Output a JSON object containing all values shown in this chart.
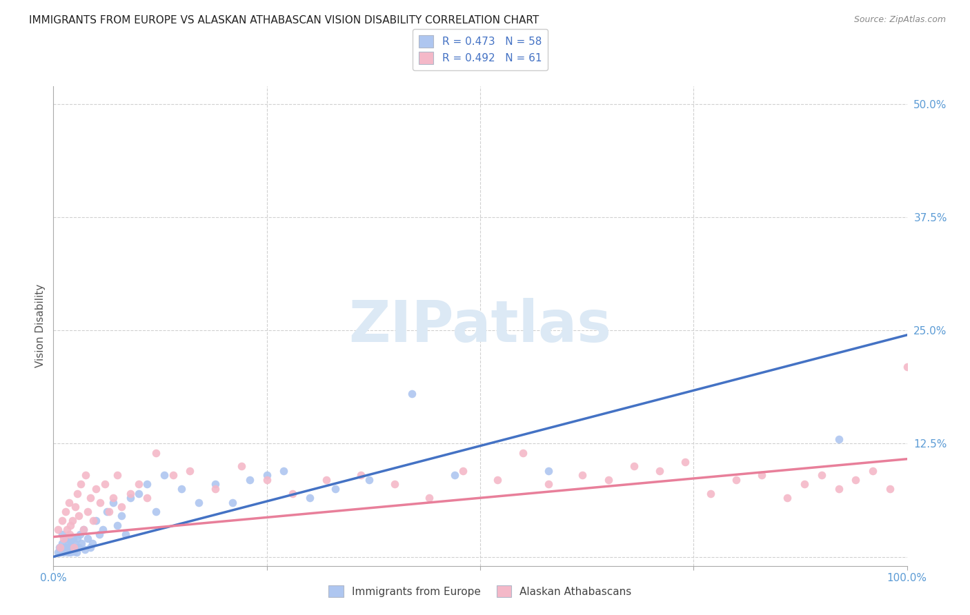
{
  "title": "IMMIGRANTS FROM EUROPE VS ALASKAN ATHABASCAN VISION DISABILITY CORRELATION CHART",
  "source": "Source: ZipAtlas.com",
  "ylabel": "Vision Disability",
  "yticks": [
    0.0,
    0.125,
    0.25,
    0.375,
    0.5
  ],
  "ytick_labels": [
    "",
    "12.5%",
    "25.0%",
    "37.5%",
    "50.0%"
  ],
  "xlim": [
    0.0,
    1.0
  ],
  "ylim": [
    -0.01,
    0.52
  ],
  "legend_entries": [
    {
      "label": "R = 0.473   N = 58",
      "facecolor": "#aec6f0"
    },
    {
      "label": "R = 0.492   N = 61",
      "facecolor": "#f4b8c8"
    }
  ],
  "legend_bottom": [
    "Immigrants from Europe",
    "Alaskan Athabascans"
  ],
  "legend_bottom_colors": [
    "#aec6f0",
    "#f4b8c8"
  ],
  "watermark": "ZIPatlas",
  "blue_line": {
    "x_start": 0.0,
    "y_start": 0.0,
    "x_end": 1.0,
    "y_end": 0.245
  },
  "pink_line": {
    "x_start": 0.0,
    "y_start": 0.022,
    "x_end": 1.0,
    "y_end": 0.108
  },
  "blue_scatter_x": [
    0.005,
    0.007,
    0.008,
    0.01,
    0.01,
    0.012,
    0.013,
    0.015,
    0.015,
    0.016,
    0.017,
    0.018,
    0.019,
    0.02,
    0.02,
    0.021,
    0.022,
    0.023,
    0.024,
    0.025,
    0.026,
    0.027,
    0.028,
    0.03,
    0.031,
    0.033,
    0.035,
    0.037,
    0.04,
    0.043,
    0.046,
    0.05,
    0.054,
    0.058,
    0.063,
    0.07,
    0.075,
    0.08,
    0.085,
    0.09,
    0.1,
    0.11,
    0.12,
    0.13,
    0.15,
    0.17,
    0.19,
    0.21,
    0.23,
    0.25,
    0.27,
    0.3,
    0.33,
    0.37,
    0.42,
    0.47,
    0.58,
    0.92
  ],
  "blue_scatter_y": [
    0.005,
    0.01,
    0.005,
    0.015,
    0.025,
    0.005,
    0.01,
    0.008,
    0.02,
    0.01,
    0.005,
    0.015,
    0.01,
    0.005,
    0.018,
    0.012,
    0.008,
    0.02,
    0.006,
    0.015,
    0.01,
    0.005,
    0.02,
    0.01,
    0.025,
    0.015,
    0.03,
    0.008,
    0.02,
    0.01,
    0.015,
    0.04,
    0.025,
    0.03,
    0.05,
    0.06,
    0.035,
    0.045,
    0.025,
    0.065,
    0.07,
    0.08,
    0.05,
    0.09,
    0.075,
    0.06,
    0.08,
    0.06,
    0.085,
    0.09,
    0.095,
    0.065,
    0.075,
    0.085,
    0.18,
    0.09,
    0.095,
    0.13
  ],
  "pink_scatter_x": [
    0.005,
    0.008,
    0.01,
    0.012,
    0.014,
    0.016,
    0.018,
    0.019,
    0.02,
    0.022,
    0.024,
    0.026,
    0.028,
    0.03,
    0.032,
    0.035,
    0.038,
    0.04,
    0.043,
    0.047,
    0.05,
    0.055,
    0.06,
    0.065,
    0.07,
    0.075,
    0.08,
    0.09,
    0.1,
    0.11,
    0.12,
    0.14,
    0.16,
    0.19,
    0.22,
    0.25,
    0.28,
    0.32,
    0.36,
    0.4,
    0.44,
    0.48,
    0.52,
    0.55,
    0.58,
    0.62,
    0.65,
    0.68,
    0.71,
    0.74,
    0.77,
    0.8,
    0.83,
    0.86,
    0.88,
    0.9,
    0.92,
    0.94,
    0.96,
    0.98,
    1.0
  ],
  "pink_scatter_y": [
    0.03,
    0.01,
    0.04,
    0.02,
    0.05,
    0.03,
    0.06,
    0.025,
    0.035,
    0.04,
    0.01,
    0.055,
    0.07,
    0.045,
    0.08,
    0.03,
    0.09,
    0.05,
    0.065,
    0.04,
    0.075,
    0.06,
    0.08,
    0.05,
    0.065,
    0.09,
    0.055,
    0.07,
    0.08,
    0.065,
    0.115,
    0.09,
    0.095,
    0.075,
    0.1,
    0.085,
    0.07,
    0.085,
    0.09,
    0.08,
    0.065,
    0.095,
    0.085,
    0.115,
    0.08,
    0.09,
    0.085,
    0.1,
    0.095,
    0.105,
    0.07,
    0.085,
    0.09,
    0.065,
    0.08,
    0.09,
    0.075,
    0.085,
    0.095,
    0.075,
    0.21
  ],
  "blue_scatter_color": "#aec6f0",
  "pink_scatter_color": "#f4b8c8",
  "blue_line_color": "#4472c4",
  "pink_line_color": "#e87f9a",
  "grid_color": "#d0d0d0",
  "bg_color": "#ffffff",
  "title_color": "#222222",
  "axis_tick_color": "#5b9bd5",
  "ytick_color": "#5b9bd5",
  "title_fontsize": 11,
  "source_fontsize": 9,
  "watermark_color": "#dce9f5",
  "watermark_fontsize": 60
}
